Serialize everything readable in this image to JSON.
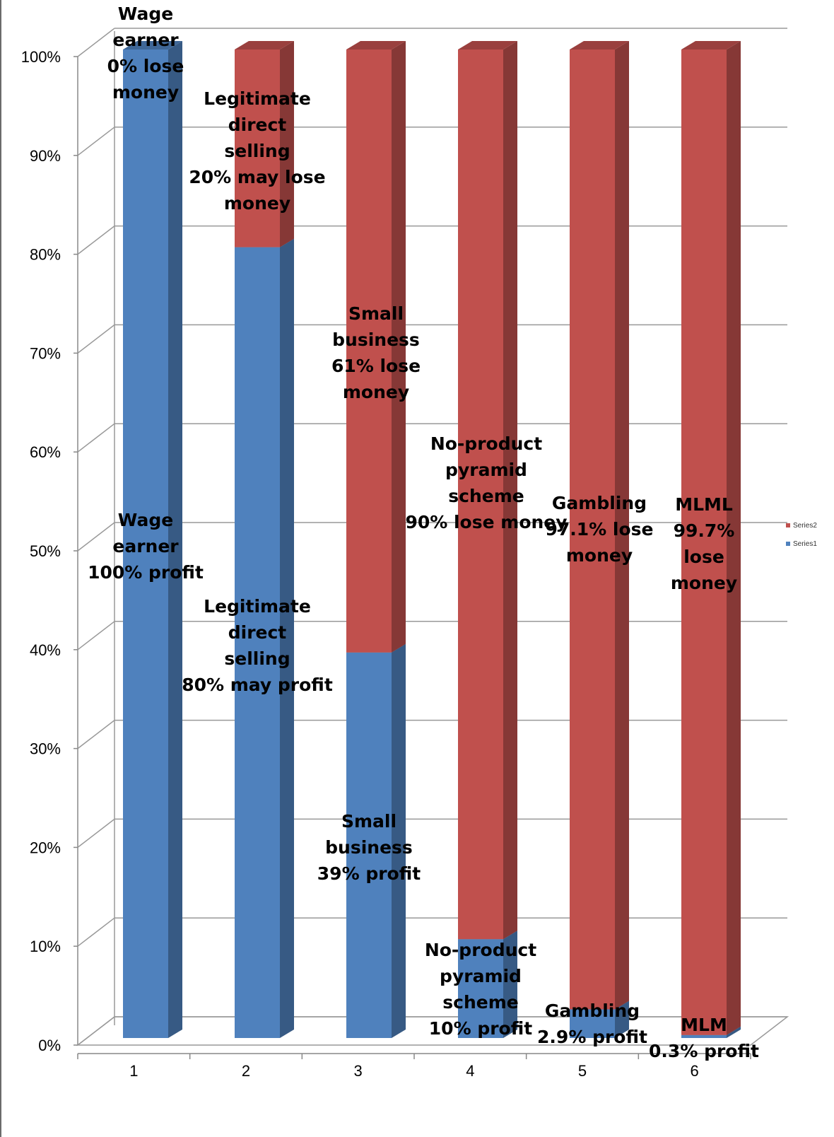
{
  "chart_data": {
    "type": "bar",
    "stacked": true,
    "three_d": true,
    "categories": [
      "1",
      "2",
      "3",
      "4",
      "5",
      "6"
    ],
    "series": [
      {
        "name": "Series1",
        "color": "#4f81bd",
        "values": [
          100,
          80,
          39,
          10,
          2.9,
          0.3
        ]
      },
      {
        "name": "Series2",
        "color": "#c0504d",
        "values": [
          0,
          20,
          61,
          90,
          97.1,
          99.7
        ]
      }
    ],
    "ylim": [
      0,
      100
    ],
    "yticks": [
      "0%",
      "10%",
      "20%",
      "30%",
      "40%",
      "50%",
      "60%",
      "70%",
      "80%",
      "90%",
      "100%"
    ],
    "grid": true,
    "legend": "right",
    "annotations_profit": [
      "Wage earner 100% profit",
      "Legitimate direct selling 80% may profit",
      "Small business 39% profit",
      "No-product pyramid scheme 10% profit",
      "Gambling 2.9% profit",
      "MLM 0.3% profit"
    ],
    "annotations_lose": [
      "Wage earner 0% lose money",
      "Legitimate direct selling 20% may lose money",
      "Small business 61% lose money",
      "No-product pyramid scheme 90% lose money",
      "Gambling 97.1% lose money",
      "MLML 99.7% lose money"
    ]
  }
}
